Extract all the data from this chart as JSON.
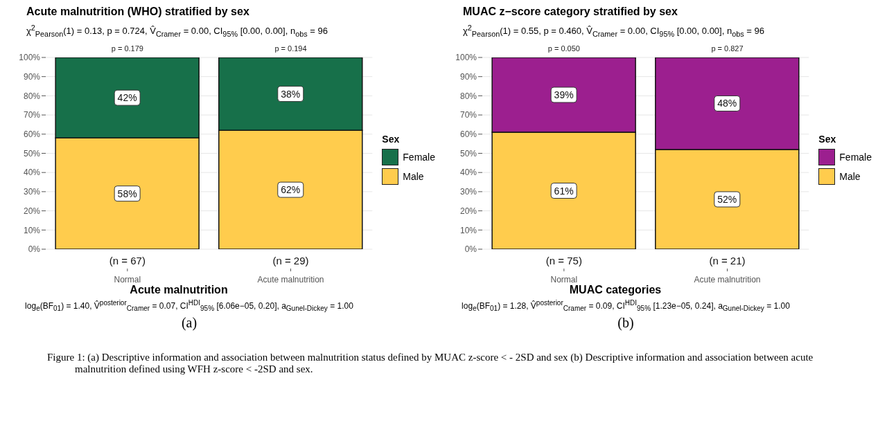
{
  "chart_data": [
    {
      "type": "bar",
      "stacked": true,
      "title": "Acute malnutrition (WHO) stratified by sex",
      "subtitle": "χ$^{2}$$_{Pearson}$(1) = 0.13, p = 0.724, V̂$_{Cramer}$ = 0.00, CI$_{95%}$ [0.00, 0.00], n$_{obs}$ = 96",
      "xlabel": "Acute malnutrition",
      "legend_title": "Sex",
      "legend": "right",
      "grid": "y",
      "categories": [
        "Normal",
        "Acute malnutrition"
      ],
      "series": [
        {
          "name": "Male",
          "color": "#ffcc4d",
          "values": [
            58,
            62
          ],
          "value_labels": [
            "58%",
            "62%"
          ]
        },
        {
          "name": "Female",
          "color": "#17704a",
          "values": [
            42,
            38
          ],
          "value_labels": [
            "42%",
            "38%"
          ]
        }
      ],
      "ylim": [
        0,
        100
      ],
      "yticks": [
        {
          "value": 0,
          "label": "0%"
        },
        {
          "value": 10,
          "label": "10%"
        },
        {
          "value": 20,
          "label": "20%"
        },
        {
          "value": 30,
          "label": "30%"
        },
        {
          "value": 40,
          "label": "40%"
        },
        {
          "value": 50,
          "label": "50%"
        },
        {
          "value": 60,
          "label": "60%"
        },
        {
          "value": 70,
          "label": "70%"
        },
        {
          "value": 80,
          "label": "80%"
        },
        {
          "value": 90,
          "label": "90%"
        },
        {
          "value": 100,
          "label": "100%"
        }
      ],
      "annotations": [
        {
          "text": "p = 0.179",
          "x": "Normal",
          "y": 100
        },
        {
          "text": "p = 0.194",
          "x": "Acute malnutrition",
          "y": 100
        },
        {
          "text": "(n = 67)",
          "x": "Normal"
        },
        {
          "text": "(n = 29)",
          "x": "Acute malnutrition"
        },
        "log$_{e}$(BF$_{01}$) = 1.40, V̂$^{posterior}$$_{Cramer}$ = 0.07, CI$^{HDI}$$_{95%}$ [6.06e−05, 0.20], a$_{Gunel-Dickey}$ = 1.00",
        "(a)",
        "Figure 1: (a) Descriptive information and association between malnutrition status defined by MUAC z-score < - 2SD and sex (b) Descriptive information and association between acute malnutrition defined using WFH z-score < -2SD and sex."
      ]
    },
    {
      "type": "bar",
      "stacked": true,
      "title": "MUAC z−score category stratified by sex",
      "subtitle": "χ$^{2}$$_{Pearson}$(1) = 0.55, p = 0.460, V̂$_{Cramer}$ = 0.00, CI$_{95%}$ [0.00, 0.00], n$_{obs}$ = 96",
      "xlabel": "MUAC categories",
      "legend_title": "Sex",
      "legend": "right",
      "grid": "y",
      "categories": [
        "Normal",
        "Acute malnutrition"
      ],
      "series": [
        {
          "name": "Male",
          "color": "#ffcc4d",
          "values": [
            61,
            52
          ],
          "value_labels": [
            "61%",
            "52%"
          ]
        },
        {
          "name": "Female",
          "color": "#9c1f8f",
          "values": [
            39,
            48
          ],
          "value_labels": [
            "39%",
            "48%"
          ]
        }
      ],
      "ylim": [
        0,
        100
      ],
      "yticks": [
        {
          "value": 0,
          "label": "0%"
        },
        {
          "value": 10,
          "label": "10%"
        },
        {
          "value": 20,
          "label": "20%"
        },
        {
          "value": 30,
          "label": "30%"
        },
        {
          "value": 40,
          "label": "40%"
        },
        {
          "value": 50,
          "label": "50%"
        },
        {
          "value": 60,
          "label": "60%"
        },
        {
          "value": 70,
          "label": "70%"
        },
        {
          "value": 80,
          "label": "80%"
        },
        {
          "value": 90,
          "label": "90%"
        },
        {
          "value": 100,
          "label": "100%"
        }
      ],
      "annotations": [
        {
          "text": "p = 0.050",
          "x": "Normal",
          "y": 100
        },
        {
          "text": "p = 0.827",
          "x": "Acute malnutrition",
          "y": 100
        },
        {
          "text": "(n = 75)",
          "x": "Normal"
        },
        {
          "text": "(n = 21)",
          "x": "Acute malnutrition"
        },
        "log$_{e}$(BF$_{01}$) = 1.28, V̂$^{posterior}$$_{Cramer}$ = 0.09, CI$^{HDI}$$_{95%}$ [1.23e−05, 0.24], a$_{Gunel-Dickey}$ = 1.00",
        "(b)"
      ]
    }
  ]
}
